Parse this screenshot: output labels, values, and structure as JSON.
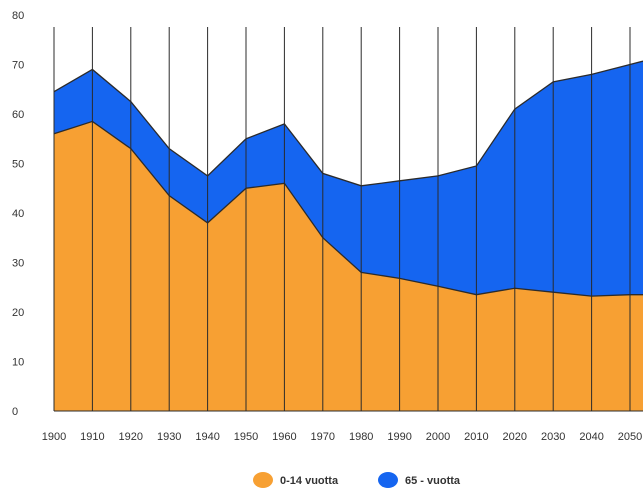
{
  "chart_data": {
    "type": "area",
    "stacked": true,
    "title": "",
    "xlabel": "",
    "ylabel": "",
    "x": [
      1900,
      1910,
      1920,
      1930,
      1940,
      1950,
      1960,
      1970,
      1980,
      1990,
      2000,
      2010,
      2020,
      2030,
      2040,
      2050
    ],
    "x_tick_labels": [
      "1900",
      "1910",
      "1920",
      "1930",
      "1940",
      "1950",
      "1960",
      "1970",
      "1980",
      "1990",
      "2000",
      "2010",
      "2020",
      "2030",
      "2040",
      "2050"
    ],
    "ylim": [
      0,
      80
    ],
    "y_ticks": [
      0,
      10,
      20,
      30,
      40,
      50,
      60,
      70,
      80
    ],
    "grid": "vertical",
    "legend_position": "bottom",
    "series": [
      {
        "name": "0-14 vuotta",
        "color": "#F7A033",
        "values": [
          56,
          58.5,
          53,
          43.5,
          38,
          45,
          46,
          35,
          28,
          26.8,
          25.2,
          23.5,
          24.8,
          24,
          23.2,
          23.5
        ]
      },
      {
        "name": "65 - vuotta",
        "color": "#1565F0",
        "values": [
          8.5,
          10.5,
          9.5,
          9.5,
          9.5,
          10,
          12,
          13,
          17.5,
          19.7,
          22.3,
          26,
          36.2,
          42.5,
          44.8,
          46.5
        ]
      }
    ]
  }
}
